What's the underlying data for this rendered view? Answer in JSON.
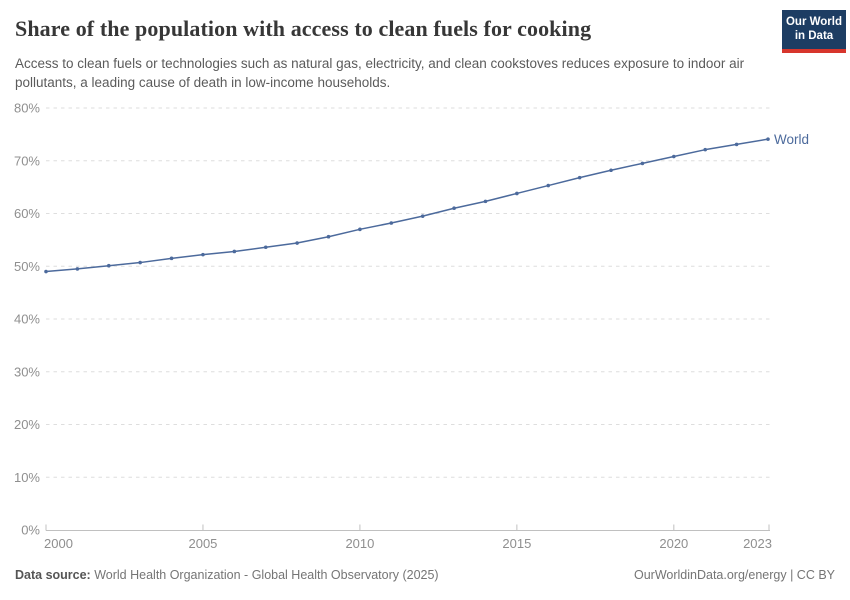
{
  "header": {
    "title": "Share of the population with access to clean fuels for cooking",
    "subtitle": "Access to clean fuels or technologies such as natural gas, electricity, and clean cookstoves reduces exposure to indoor air pollutants, a leading cause of death in low-income households.",
    "logo_line1": "Our World",
    "logo_line2": "in Data"
  },
  "chart_data": {
    "type": "line",
    "title": "Share of the population with access to clean fuels for cooking",
    "xlabel": "",
    "ylabel": "",
    "x": [
      2000,
      2001,
      2002,
      2003,
      2004,
      2005,
      2006,
      2007,
      2008,
      2009,
      2010,
      2011,
      2012,
      2013,
      2014,
      2015,
      2016,
      2017,
      2018,
      2019,
      2020,
      2021,
      2022,
      2023
    ],
    "series": [
      {
        "name": "World",
        "color": "#4c6a9c",
        "values": [
          49.0,
          49.5,
          50.1,
          50.7,
          51.5,
          52.2,
          52.8,
          53.6,
          54.4,
          55.6,
          57.0,
          58.2,
          59.5,
          61.0,
          62.3,
          63.8,
          65.3,
          66.8,
          68.2,
          69.5,
          70.8,
          72.1,
          73.1,
          74.1
        ]
      }
    ],
    "ylim": [
      0,
      80
    ],
    "ytick_step": 10,
    "ytick_suffix": "%",
    "xticks": [
      2000,
      2005,
      2010,
      2015,
      2020,
      2023
    ],
    "grid": "horizontal-dashed",
    "legend_position": "end-of-line-label",
    "end_label": "World"
  },
  "footer": {
    "source_label": "Data source:",
    "source_text": "World Health Organization - Global Health Observatory (2025)",
    "credit_text": "OurWorldinData.org/energy | CC BY"
  },
  "colors": {
    "series_blue": "#4c6a9c",
    "gridline": "#dedede",
    "axis": "#c0c0c0",
    "tick_label": "#8f8f8f",
    "title_text": "#373737",
    "subtitle_text": "#5b5b5b",
    "footer_text": "#757575",
    "logo_bg": "#1d3d63",
    "logo_stripe": "#d7352c"
  }
}
